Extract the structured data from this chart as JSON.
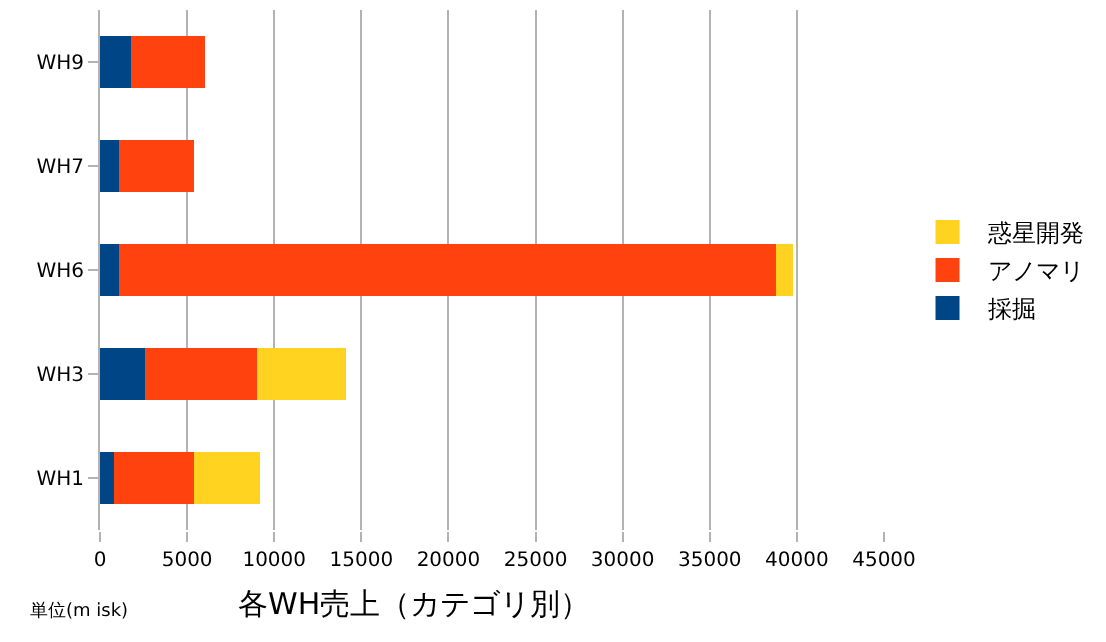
{
  "chart_data": {
    "type": "bar",
    "orientation": "horizontal",
    "stacked": true,
    "title": "各WH売上（カテゴリ別）",
    "categories": [
      "WH9",
      "WH7",
      "WH6",
      "WH3",
      "WH1"
    ],
    "series": [
      {
        "name": "採掘",
        "color": "#004586",
        "values": [
          1800,
          1100,
          1100,
          2600,
          800
        ]
      },
      {
        "name": "アノマリ",
        "color": "#ff420e",
        "values": [
          4200,
          4300,
          37700,
          6400,
          4600
        ]
      },
      {
        "name": "惑星開発",
        "color": "#ffd320",
        "values": [
          null,
          null,
          1000,
          5100,
          3800
        ]
      }
    ],
    "xlim": [
      0,
      45000
    ],
    "xticks": [
      0,
      5000,
      10000,
      15000,
      20000,
      25000,
      30000,
      35000,
      40000,
      45000
    ],
    "grid": "x",
    "legend": "right",
    "annotations": [
      "単位(m isk)"
    ]
  }
}
